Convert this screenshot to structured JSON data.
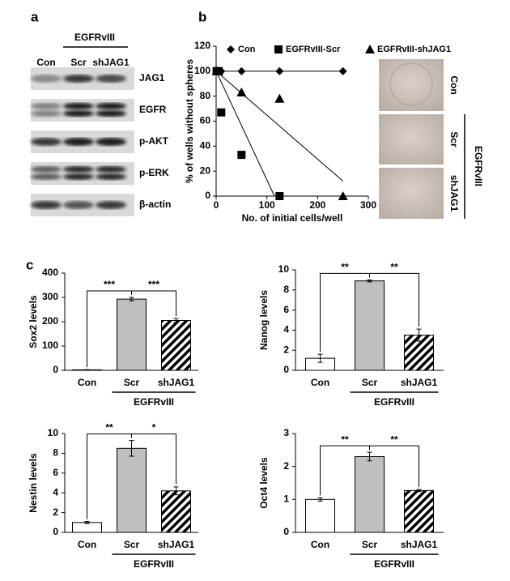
{
  "panel_labels": [
    "a",
    "b",
    "c"
  ],
  "blot": {
    "group_label": "EGFRvIII",
    "lanes": [
      "Con",
      "Scr",
      "shJAG1"
    ],
    "rows": [
      "JAG1",
      "EGFR",
      "p-AKT",
      "p-ERK",
      "β-actin"
    ]
  },
  "micrographs": {
    "group_label": "EGFRvIII",
    "rows": [
      "Con",
      "Scr",
      "shJAG1"
    ]
  },
  "chart_data": [
    {
      "type": "scatter",
      "x_label": "No. of initial cells/well",
      "y_label": "% of wells without spheres",
      "xlim": [
        0,
        300
      ],
      "xticks": [
        0,
        100,
        200,
        300
      ],
      "ylim": [
        0,
        120
      ],
      "yticks": [
        0,
        20,
        40,
        60,
        80,
        100,
        120
      ],
      "series": [
        {
          "name": "Con",
          "marker": "diamond",
          "color": "#000000",
          "x": [
            1,
            5,
            10,
            50,
            125,
            250
          ],
          "values": [
            100,
            100,
            100,
            100,
            100,
            100
          ],
          "fit": {
            "x": [
              0,
              250
            ],
            "y": [
              100,
              100
            ]
          }
        },
        {
          "name": "EGFRvIII-Scr",
          "marker": "square",
          "color": "#000000",
          "x": [
            1,
            5,
            10,
            50,
            125
          ],
          "values": [
            100,
            100,
            67,
            33,
            0
          ],
          "fit": {
            "x": [
              0,
              115
            ],
            "y": [
              100,
              0
            ]
          }
        },
        {
          "name": "EGFRvIII-shJAG1",
          "marker": "triangle",
          "color": "#000000",
          "x": [
            1,
            5,
            50,
            125,
            250
          ],
          "values": [
            100,
            100,
            83,
            78,
            0
          ],
          "fit": {
            "x": [
              0,
              250
            ],
            "y": [
              100,
              12
            ]
          }
        }
      ]
    },
    {
      "type": "bar",
      "y_label": "Sox2 levels",
      "categories": [
        "Con",
        "Scr",
        "shJAG1"
      ],
      "group_label": "EGFRvIII",
      "values": [
        2,
        293,
        205
      ],
      "errors": [
        1,
        7,
        8
      ],
      "colors": [
        "#ffffff",
        "#bfbfbf",
        "#000000"
      ],
      "patterns": [
        "solid",
        "solid",
        "hatch"
      ],
      "ylim": [
        0,
        400
      ],
      "yticks": [
        0,
        100,
        200,
        300,
        400
      ],
      "significance": [
        "***",
        "***"
      ]
    },
    {
      "type": "bar",
      "y_label": "Nanog levels",
      "categories": [
        "Con",
        "Scr",
        "shJAG1"
      ],
      "group_label": "EGFRvIII",
      "values": [
        1.2,
        8.9,
        3.5
      ],
      "errors": [
        0.4,
        0.1,
        0.6
      ],
      "colors": [
        "#ffffff",
        "#bfbfbf",
        "#000000"
      ],
      "patterns": [
        "solid",
        "solid",
        "hatch"
      ],
      "ylim": [
        0,
        10
      ],
      "yticks": [
        0,
        2,
        4,
        6,
        8,
        10
      ],
      "significance": [
        "**",
        "**"
      ]
    },
    {
      "type": "bar",
      "y_label": "Nestin  levels",
      "categories": [
        "Con",
        "Scr",
        "shJAG1"
      ],
      "group_label": "EGFRvIII",
      "values": [
        1,
        8.5,
        4.2
      ],
      "errors": [
        0.1,
        0.8,
        0.4
      ],
      "colors": [
        "#ffffff",
        "#bfbfbf",
        "#000000"
      ],
      "patterns": [
        "solid",
        "solid",
        "hatch"
      ],
      "ylim": [
        0,
        10
      ],
      "yticks": [
        0,
        2,
        4,
        6,
        8,
        10
      ],
      "significance": [
        "**",
        "*"
      ]
    },
    {
      "type": "bar",
      "y_label": "Oct4 levels",
      "categories": [
        "Con",
        "Scr",
        "shJAG1"
      ],
      "group_label": "EGFRvIII",
      "values": [
        1,
        2.3,
        1.27
      ],
      "errors": [
        0.05,
        0.13,
        0.03
      ],
      "colors": [
        "#ffffff",
        "#bfbfbf",
        "#000000"
      ],
      "patterns": [
        "solid",
        "solid",
        "hatch"
      ],
      "ylim": [
        0,
        3
      ],
      "yticks": [
        0,
        1,
        2,
        3
      ],
      "significance": [
        "**",
        "**"
      ]
    }
  ]
}
